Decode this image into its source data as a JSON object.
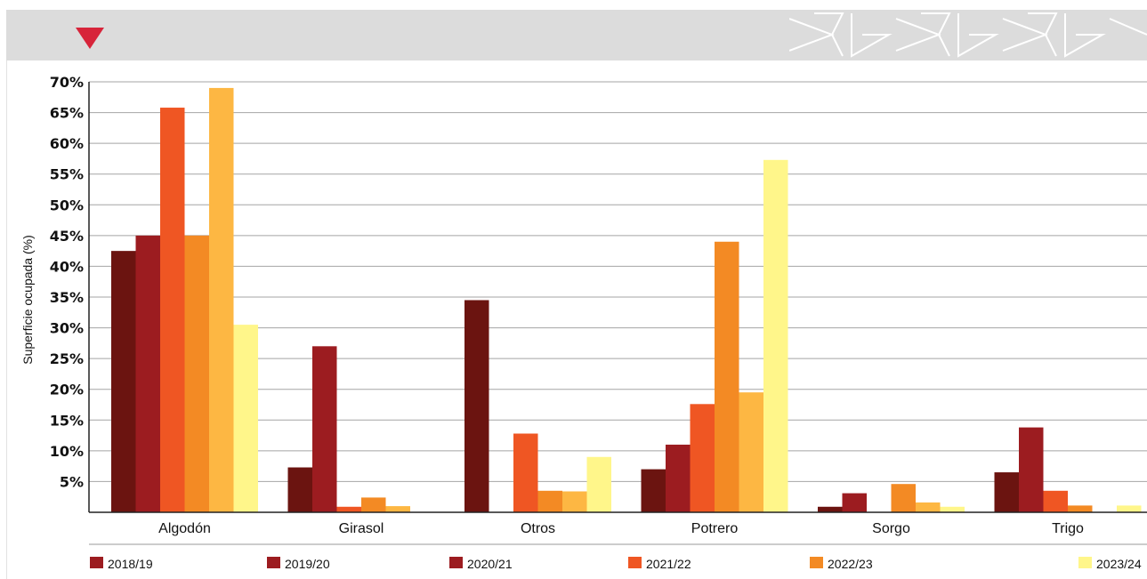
{
  "chart_data": {
    "type": "bar",
    "title": "",
    "xlabel": "",
    "ylabel": "Superficie ocupada (%)",
    "ylim": [
      0,
      70
    ],
    "yticks": [
      "5%",
      "10%",
      "15%",
      "20%",
      "25%",
      "30%",
      "35%",
      "40%",
      "45%",
      "50%",
      "55%",
      "60%",
      "65%",
      "70%"
    ],
    "grid": "horizontal",
    "legend": "bottom",
    "categories": [
      "Algodón",
      "Girasol",
      "Otros",
      "Potrero",
      "Sorgo",
      "Trigo"
    ],
    "series": [
      {
        "name": "2018/19",
        "color": "#6b1410",
        "values": [
          42.5,
          7.3,
          34.5,
          7.0,
          0.9,
          6.5
        ]
      },
      {
        "name": "2019/20",
        "color": "#9c1c20",
        "values": [
          45.0,
          27.0,
          0,
          11.0,
          3.1,
          13.8
        ]
      },
      {
        "name": "2020/21",
        "color": "#ef5623",
        "values": [
          65.8,
          0.9,
          12.8,
          17.6,
          0,
          3.5
        ]
      },
      {
        "name": "2021/22",
        "color": "#f38a24",
        "values": [
          45.0,
          2.4,
          3.5,
          44.0,
          4.6,
          1.1
        ]
      },
      {
        "name": "2022/23",
        "color": "#fdb743",
        "values": [
          69.0,
          1.0,
          3.4,
          19.5,
          1.6,
          0
        ]
      },
      {
        "name": "2023/24",
        "color": "#fff68a",
        "values": [
          30.5,
          0,
          9.0,
          57.3,
          0.9,
          1.1
        ]
      }
    ],
    "legend_markers": [
      "#9c1c20",
      "#9c1c20",
      "#9c1c20",
      "#ef5623",
      "#f38a24",
      "#fff68a"
    ]
  }
}
